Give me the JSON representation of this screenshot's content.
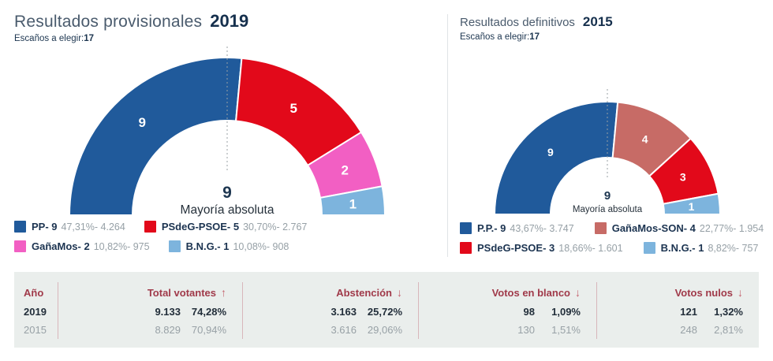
{
  "panels": [
    {
      "title": "Resultados provisionales",
      "year": "2019",
      "subtitle_label": "Escaños a elegir:",
      "subtitle_value": "17",
      "majority_number": "9",
      "majority_label": "Mayoría absoluta",
      "segments": [
        {
          "party": "PP",
          "seats": 9,
          "color": "#205a9b"
        },
        {
          "party": "PSdeG-PSOE",
          "seats": 5,
          "color": "#e2091a"
        },
        {
          "party": "GañaMos",
          "seats": 2,
          "color": "#f25fc3"
        },
        {
          "party": "B.N.G.",
          "seats": 1,
          "color": "#7db4dd"
        }
      ],
      "legend": [
        {
          "name": "PP- 9",
          "values": "47,31%- 4.264",
          "color": "#205a9b"
        },
        {
          "name": "PSdeG-PSOE- 5",
          "values": "30,70%- 2.767",
          "color": "#e2091a"
        },
        {
          "name": "GañaMos- 2",
          "values": "10,82%- 975",
          "color": "#f25fc3"
        },
        {
          "name": "B.N.G.- 1",
          "values": "10,08%- 908",
          "color": "#7db4dd"
        }
      ]
    },
    {
      "title": "Resultados definitivos",
      "year": "2015",
      "subtitle_label": "Escaños a elegir:",
      "subtitle_value": "17",
      "majority_number": "9",
      "majority_label": "Mayoría absoluta",
      "segments": [
        {
          "party": "P.P.",
          "seats": 9,
          "color": "#205a9b"
        },
        {
          "party": "GañaMos-SON",
          "seats": 4,
          "color": "#c76b66"
        },
        {
          "party": "PSdeG-PSOE",
          "seats": 3,
          "color": "#e2091a"
        },
        {
          "party": "B.N.G.",
          "seats": 1,
          "color": "#7db4dd"
        }
      ],
      "legend": [
        {
          "name": "P.P.- 9",
          "values": "43,67%- 3.747",
          "color": "#205a9b"
        },
        {
          "name": "GañaMos-SON- 4",
          "values": "22,77%- 1.954",
          "color": "#c76b66"
        },
        {
          "name": "PSdeG-PSOE- 3",
          "values": "18,66%- 1.601",
          "color": "#e2091a"
        },
        {
          "name": "B.N.G.- 1",
          "values": "8,82%- 757",
          "color": "#7db4dd"
        }
      ]
    }
  ],
  "table": {
    "columns": [
      {
        "label": "Año",
        "arrow": ""
      },
      {
        "label": "Total votantes",
        "arrow": "↑"
      },
      {
        "label": "Abstención",
        "arrow": "↓"
      },
      {
        "label": "Votos en blanco",
        "arrow": "↓"
      },
      {
        "label": "Votos nulos",
        "arrow": "↓"
      }
    ],
    "rows": [
      {
        "year": "2019",
        "emphasis": true,
        "cells": [
          [
            "9.133",
            "74,28%"
          ],
          [
            "3.163",
            "25,72%"
          ],
          [
            "98",
            "1,09%"
          ],
          [
            "121",
            "1,32%"
          ]
        ]
      },
      {
        "year": "2015",
        "emphasis": false,
        "cells": [
          [
            "8.829",
            "70,94%"
          ],
          [
            "3.616",
            "29,06%"
          ],
          [
            "130",
            "1,51%"
          ],
          [
            "248",
            "2,81%"
          ]
        ]
      }
    ]
  },
  "colors": {
    "pp_blue": "#205a9b",
    "psoe_red": "#e2091a",
    "ganamos_pink": "#f25fc3",
    "bng_lightblue": "#7db4dd",
    "ganamos_son_salmon": "#c76b66",
    "table_header_maroon": "#a03a4a",
    "dark_navy_text": "#16304d"
  },
  "chart_data": [
    {
      "type": "pie",
      "variant": "half-donut",
      "title": "Resultados provisionales 2019",
      "categories": [
        "PP",
        "PSdeG-PSOE",
        "GañaMos",
        "B.N.G."
      ],
      "values": [
        9,
        5,
        2,
        1
      ],
      "percents": [
        "47,31%",
        "30,70%",
        "10,82%",
        "10,08%"
      ],
      "votes": [
        "4.264",
        "2.767",
        "975",
        "908"
      ],
      "colors": [
        "#205a9b",
        "#e2091a",
        "#f25fc3",
        "#7db4dd"
      ],
      "total_seats": 17,
      "majority": 9,
      "annotation": "9 Mayoría absoluta",
      "legend_position": "bottom"
    },
    {
      "type": "pie",
      "variant": "half-donut",
      "title": "Resultados definitivos 2015",
      "categories": [
        "P.P.",
        "GañaMos-SON",
        "PSdeG-PSOE",
        "B.N.G."
      ],
      "values": [
        9,
        4,
        3,
        1
      ],
      "percents": [
        "43,67%",
        "22,77%",
        "18,66%",
        "8,82%"
      ],
      "votes": [
        "3.747",
        "1.954",
        "1.601",
        "757"
      ],
      "colors": [
        "#205a9b",
        "#c76b66",
        "#e2091a",
        "#7db4dd"
      ],
      "total_seats": 17,
      "majority": 9,
      "annotation": "9 Mayoría absoluta",
      "legend_position": "bottom"
    },
    {
      "type": "table",
      "columns": [
        "Año",
        "Total votantes",
        "Abstención",
        "Votos en blanco",
        "Votos nulos"
      ],
      "rows": [
        [
          "2019",
          "9.133",
          "74,28%",
          "3.163",
          "25,72%",
          "98",
          "1,09%",
          "121",
          "1,32%"
        ],
        [
          "2015",
          "8.829",
          "70,94%",
          "3.616",
          "29,06%",
          "130",
          "1,51%",
          "248",
          "2,81%"
        ]
      ]
    }
  ]
}
